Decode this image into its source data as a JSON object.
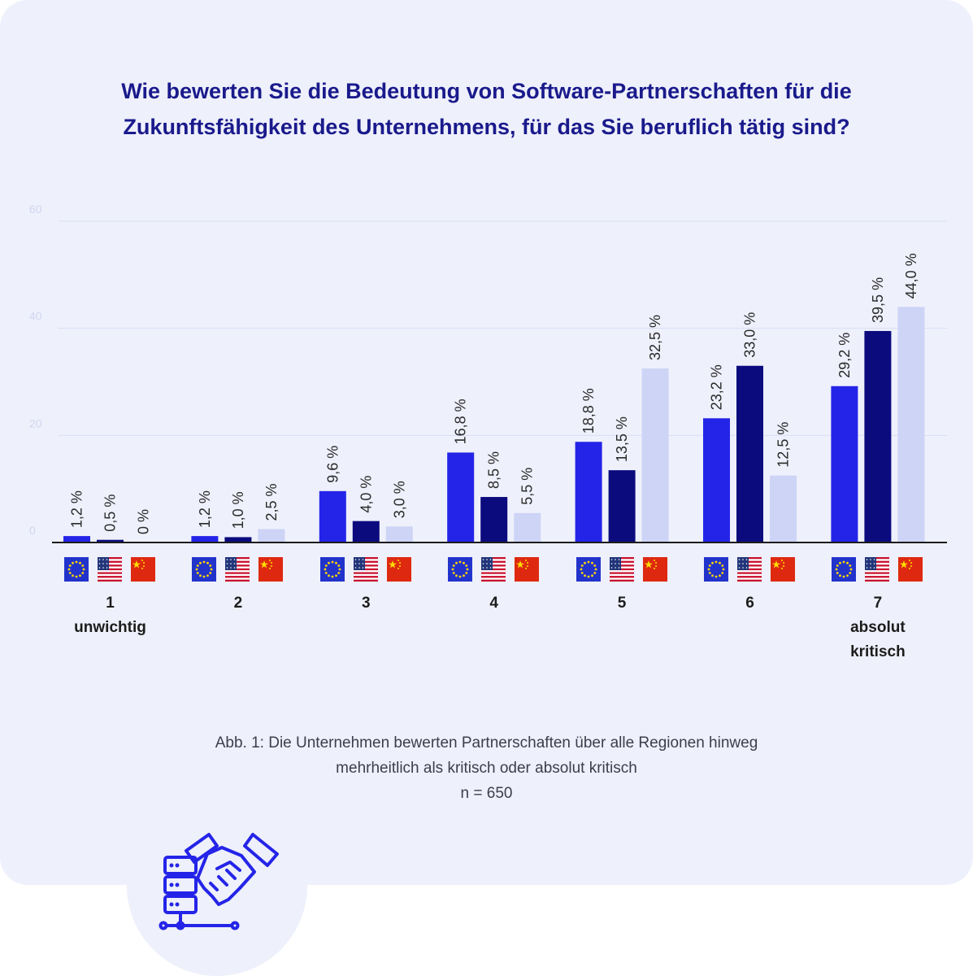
{
  "title": {
    "line1": "Wie bewerten Sie die Bedeutung von Software-Partnerschaften für die",
    "line2": "Zukunftsfähigkeit des Unternehmens, für das Sie beruflich tätig sind?"
  },
  "caption": {
    "line1": "Abb. 1: Die Unternehmen bewerten Partnerschaften über alle Regionen hinweg",
    "line2": "mehrheitlich als kritisch oder absolut kritisch",
    "line3": "n = 650"
  },
  "colors": {
    "eu_bar": "#2424e8",
    "us_bar": "#0b0b7e",
    "cn_bar": "#cdd4f6",
    "gridline": "#d8def5",
    "axis": "#1c1c1c",
    "tick_label": "#d0d6f0",
    "value_label": "#2a2a2a"
  },
  "icons": [
    "eu-flag-icon",
    "us-flag-icon",
    "china-flag-icon",
    "server-handshake-icon"
  ],
  "chart_data": {
    "type": "bar",
    "categories": [
      "1",
      "2",
      "3",
      "4",
      "5",
      "6",
      "7"
    ],
    "category_labels": [
      [
        "1",
        "unwichtig"
      ],
      [
        "2"
      ],
      [
        "3"
      ],
      [
        "4"
      ],
      [
        "5"
      ],
      [
        "6"
      ],
      [
        "7",
        "absolut",
        "kritisch"
      ]
    ],
    "series": [
      {
        "region": "EU",
        "values": [
          1.2,
          1.2,
          9.6,
          16.8,
          18.8,
          23.2,
          29.2
        ],
        "labels": [
          "1,2 %",
          "1,2 %",
          "9,6 %",
          "16,8 %",
          "18,8 %",
          "23,2 %",
          "29,2 %"
        ]
      },
      {
        "region": "USA",
        "values": [
          0.5,
          1.0,
          4.0,
          8.5,
          13.5,
          33.0,
          39.5
        ],
        "labels": [
          "0,5 %",
          "1,0 %",
          "4,0 %",
          "8,5 %",
          "13,5 %",
          "33,0 %",
          "39,5 %"
        ]
      },
      {
        "region": "China",
        "values": [
          0,
          2.5,
          3.0,
          5.5,
          32.5,
          12.5,
          44.0
        ],
        "labels": [
          "0 %",
          "2,5 %",
          "3,0 %",
          "5,5 %",
          "32,5 %",
          "12,5 %",
          "44,0 %"
        ]
      }
    ],
    "yticks": [
      0,
      20,
      40,
      60
    ],
    "ytick_labels": [
      "0",
      "20",
      "40",
      "60"
    ],
    "ylim": [
      0,
      60
    ],
    "grid": true,
    "legend": "flag icons below each group (EU, USA, China)"
  }
}
